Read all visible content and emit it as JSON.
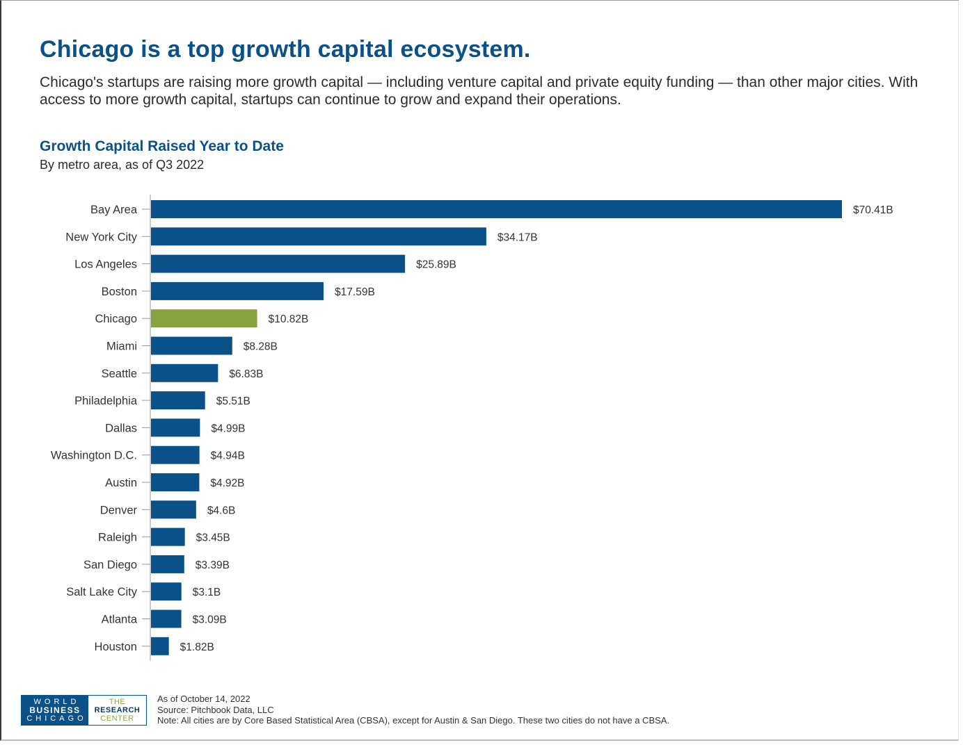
{
  "header": {
    "headline": "Chicago is a top growth capital ecosystem.",
    "intro": "Chicago's startups are raising more growth capital — including venture capital and private equity funding — than other major cities. With access to more growth capital, startups can continue to grow and expand their operations."
  },
  "chart_data": {
    "type": "bar",
    "orientation": "horizontal",
    "title": "Growth Capital Raised Year to Date",
    "subtitle": "By metro area, as of Q3 2022",
    "categories": [
      "Bay Area",
      "New York City",
      "Los Angeles",
      "Boston",
      "Chicago",
      "Miami",
      "Seattle",
      "Philadelphia",
      "Dallas",
      "Washington D.C.",
      "Austin",
      "Denver",
      "Raleigh",
      "San Diego",
      "Salt Lake City",
      "Atlanta",
      "Houston"
    ],
    "values": [
      70.41,
      34.17,
      25.89,
      17.59,
      10.82,
      8.28,
      6.83,
      5.51,
      4.99,
      4.94,
      4.92,
      4.6,
      3.45,
      3.39,
      3.1,
      3.09,
      1.82
    ],
    "value_labels": [
      "$70.41B",
      "$34.17B",
      "$25.89B",
      "$17.59B",
      "$10.82B",
      "$8.28B",
      "$6.83B",
      "$5.51B",
      "$4.99B",
      "$4.94B",
      "$4.92B",
      "$4.6B",
      "$3.45B",
      "$3.39B",
      "$3.1B",
      "$3.09B",
      "$1.82B"
    ],
    "unit": "billions USD",
    "highlight": "Chicago",
    "colors": {
      "default": "#0b5189",
      "highlight": "#87a33f"
    },
    "xlim": [
      0,
      70.41
    ],
    "grid": false,
    "legend": "none"
  },
  "logo": {
    "line1": "WORLD",
    "line2": "BUSINESS",
    "line3": "CHICAGO",
    "badge_line1": "THE",
    "badge_line2": "RESEARCH",
    "badge_line3": "CENTER"
  },
  "footer": {
    "as_of": "As of October 14, 2022",
    "source": "Source: Pitchbook Data, LLC",
    "note": "Note: All cities are by Core Based Statistical Area (CBSA), except for Austin & San Diego. These two cities do not have a CBSA."
  }
}
